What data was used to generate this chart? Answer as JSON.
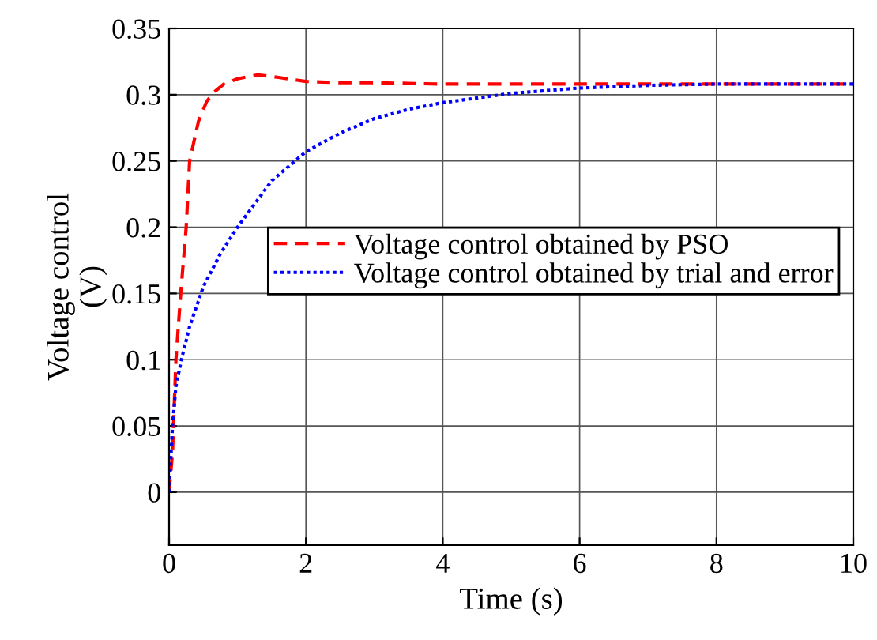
{
  "chart_data": {
    "type": "line",
    "xlabel": "Time (s)",
    "ylabel": "Voltage control\n(V)",
    "xlim": [
      0,
      10
    ],
    "xticks": [
      0,
      2,
      4,
      6,
      8,
      10
    ],
    "ylim": [
      -0.04,
      0.35
    ],
    "yticks": [
      0,
      0.05,
      0.1,
      0.15,
      0.2,
      0.25,
      0.3,
      0.35
    ],
    "grid": true,
    "legend": "right",
    "marker": "none",
    "series": [
      {
        "name": "Voltage control obtained by PSO",
        "color": "#ff0000",
        "line_style": "dashed",
        "x": [
          0,
          0.05,
          0.1,
          0.17,
          0.25,
          0.3,
          0.43,
          0.55,
          0.66,
          0.8,
          1.0,
          1.3,
          1.6,
          2,
          2.5,
          3,
          4,
          6,
          8,
          10
        ],
        "values": [
          0,
          0.03,
          0.1,
          0.15,
          0.2,
          0.25,
          0.28,
          0.295,
          0.302,
          0.308,
          0.312,
          0.315,
          0.313,
          0.31,
          0.309,
          0.309,
          0.308,
          0.308,
          0.308,
          0.308
        ]
      },
      {
        "name": "Voltage control obtained by trial and error",
        "color": "#0000ff",
        "line_style": "dotted",
        "x": [
          0,
          0.05,
          0.1,
          0.18,
          0.3,
          0.5,
          0.75,
          1.0,
          1.5,
          2,
          2.5,
          3,
          3.5,
          4,
          5,
          6,
          7,
          8,
          10
        ],
        "values": [
          0,
          0.05,
          0.08,
          0.1,
          0.125,
          0.155,
          0.18,
          0.2,
          0.235,
          0.257,
          0.271,
          0.282,
          0.289,
          0.294,
          0.301,
          0.305,
          0.307,
          0.308,
          0.308
        ]
      }
    ]
  }
}
